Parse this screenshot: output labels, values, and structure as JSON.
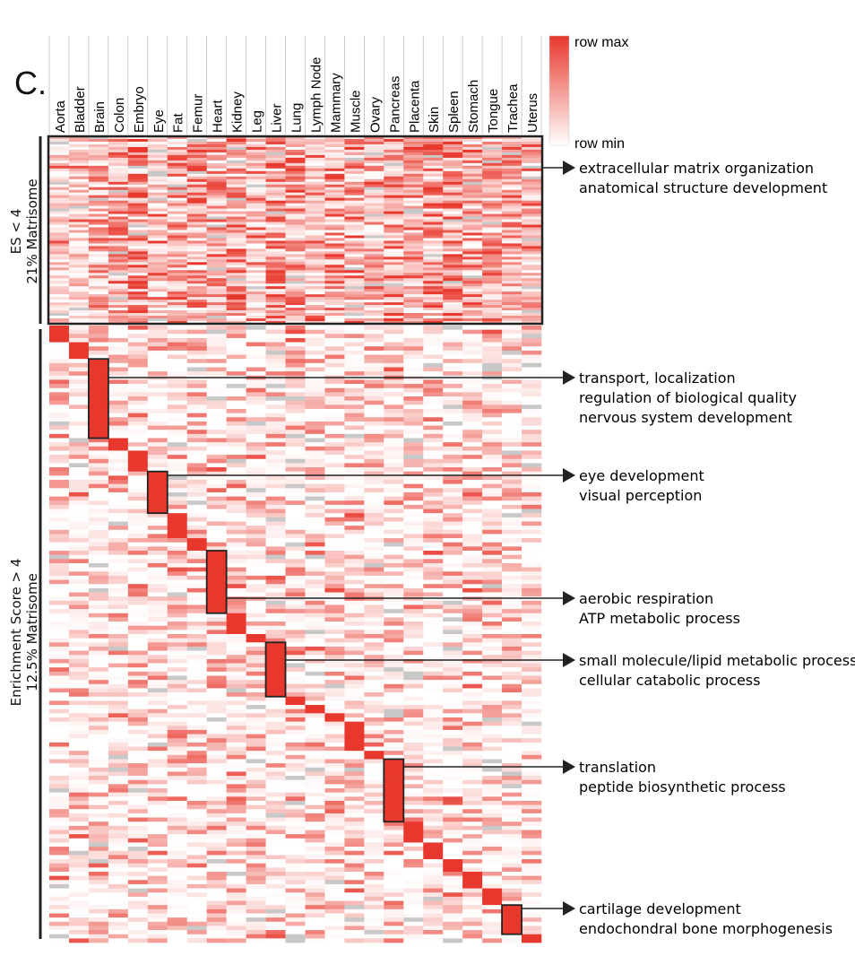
{
  "panel_label": "C.",
  "chart_data": {
    "type": "heatmap",
    "title": "",
    "columns": [
      "Aorta",
      "Bladder",
      "Brain",
      "Colon",
      "Embryo",
      "Eye",
      "Fat",
      "Femur",
      "Heart",
      "Kidney",
      "Leg",
      "Liver",
      "Lung",
      "Lymph Node",
      "Mammary",
      "Muscle",
      "Ovary",
      "Pancreas",
      "Placenta",
      "Skin",
      "Spleen",
      "Stomach",
      "Tongue",
      "Trachea",
      "Uterus"
    ],
    "color_scale": {
      "max_label": "row max",
      "min_label": "row min",
      "max_color": "#e8372c",
      "min_color": "#ffffff",
      "missing_color": "#c8c8c8"
    },
    "groups": [
      {
        "label_line1": "ES < 4",
        "label_line2": "21% Matrisome",
        "pattern": "broad"
      },
      {
        "label_line1": "Enrichment Score > 4",
        "label_line2": "12.5% Matrisome",
        "pattern": "tissue-specific diagonal"
      }
    ],
    "diagonal_blocks": [
      {
        "tissue": "Aorta",
        "rows": 4
      },
      {
        "tissue": "Bladder",
        "rows": 4
      },
      {
        "tissue": "Brain",
        "rows": 19
      },
      {
        "tissue": "Colon",
        "rows": 3
      },
      {
        "tissue": "Embryo",
        "rows": 5
      },
      {
        "tissue": "Eye",
        "rows": 10
      },
      {
        "tissue": "Fat",
        "rows": 6
      },
      {
        "tissue": "Femur",
        "rows": 3
      },
      {
        "tissue": "Heart",
        "rows": 15
      },
      {
        "tissue": "Kidney",
        "rows": 5
      },
      {
        "tissue": "Leg",
        "rows": 2
      },
      {
        "tissue": "Liver",
        "rows": 13
      },
      {
        "tissue": "Lung",
        "rows": 2
      },
      {
        "tissue": "Lymph Node",
        "rows": 2
      },
      {
        "tissue": "Mammary",
        "rows": 2
      },
      {
        "tissue": "Muscle",
        "rows": 7
      },
      {
        "tissue": "Ovary",
        "rows": 2
      },
      {
        "tissue": "Pancreas",
        "rows": 15
      },
      {
        "tissue": "Placenta",
        "rows": 5
      },
      {
        "tissue": "Skin",
        "rows": 4
      },
      {
        "tissue": "Spleen",
        "rows": 3
      },
      {
        "tissue": "Stomach",
        "rows": 4
      },
      {
        "tissue": "Tongue",
        "rows": 4
      },
      {
        "tissue": "Trachea",
        "rows": 7
      },
      {
        "tissue": "Uterus",
        "rows": 2
      }
    ],
    "annotations": [
      {
        "target": "ES < 4",
        "lines": [
          "extracellular matrix organization",
          "anatomical structure development"
        ]
      },
      {
        "target": "Brain",
        "lines": [
          "transport, localization",
          "regulation of biological quality",
          "nervous system development"
        ]
      },
      {
        "target": "Eye",
        "lines": [
          "eye development",
          "visual perception"
        ]
      },
      {
        "target": "Heart",
        "lines": [
          "aerobic respiration",
          "ATP metabolic process"
        ]
      },
      {
        "target": "Liver",
        "lines": [
          "small molecule/lipid metabolic process",
          "cellular catabolic process"
        ]
      },
      {
        "target": "Pancreas",
        "lines": [
          "translation",
          "peptide biosynthetic process"
        ]
      },
      {
        "target": "Trachea",
        "lines": [
          "cartilage development",
          "endochondral bone morphogenesis"
        ]
      }
    ]
  }
}
